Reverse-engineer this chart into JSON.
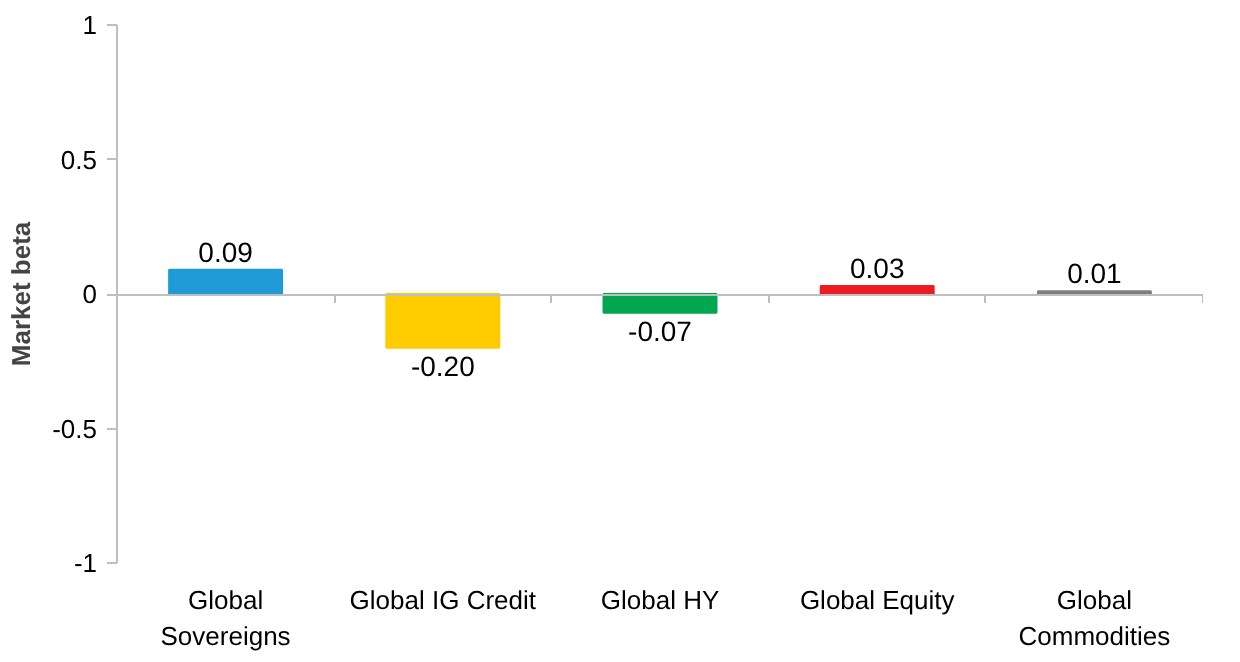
{
  "chart_data": {
    "type": "bar",
    "ylabel": "Market beta",
    "categories": [
      "Global Sovereigns",
      "Global IG Credit",
      "Global HY",
      "Global Equity",
      "Global Commodities"
    ],
    "values": [
      0.09,
      -0.2,
      -0.07,
      0.03,
      0.01
    ],
    "colors": [
      "#1f9ad6",
      "#ffcc00",
      "#00a650",
      "#ec1c24",
      "#7f7f7f"
    ],
    "value_labels": [
      "0.09",
      "-0.20",
      "-0.07",
      "0.03",
      "0.01"
    ],
    "ylim": [
      -1,
      1
    ],
    "yticks": [
      -1,
      -0.5,
      0,
      0.5,
      1
    ]
  }
}
